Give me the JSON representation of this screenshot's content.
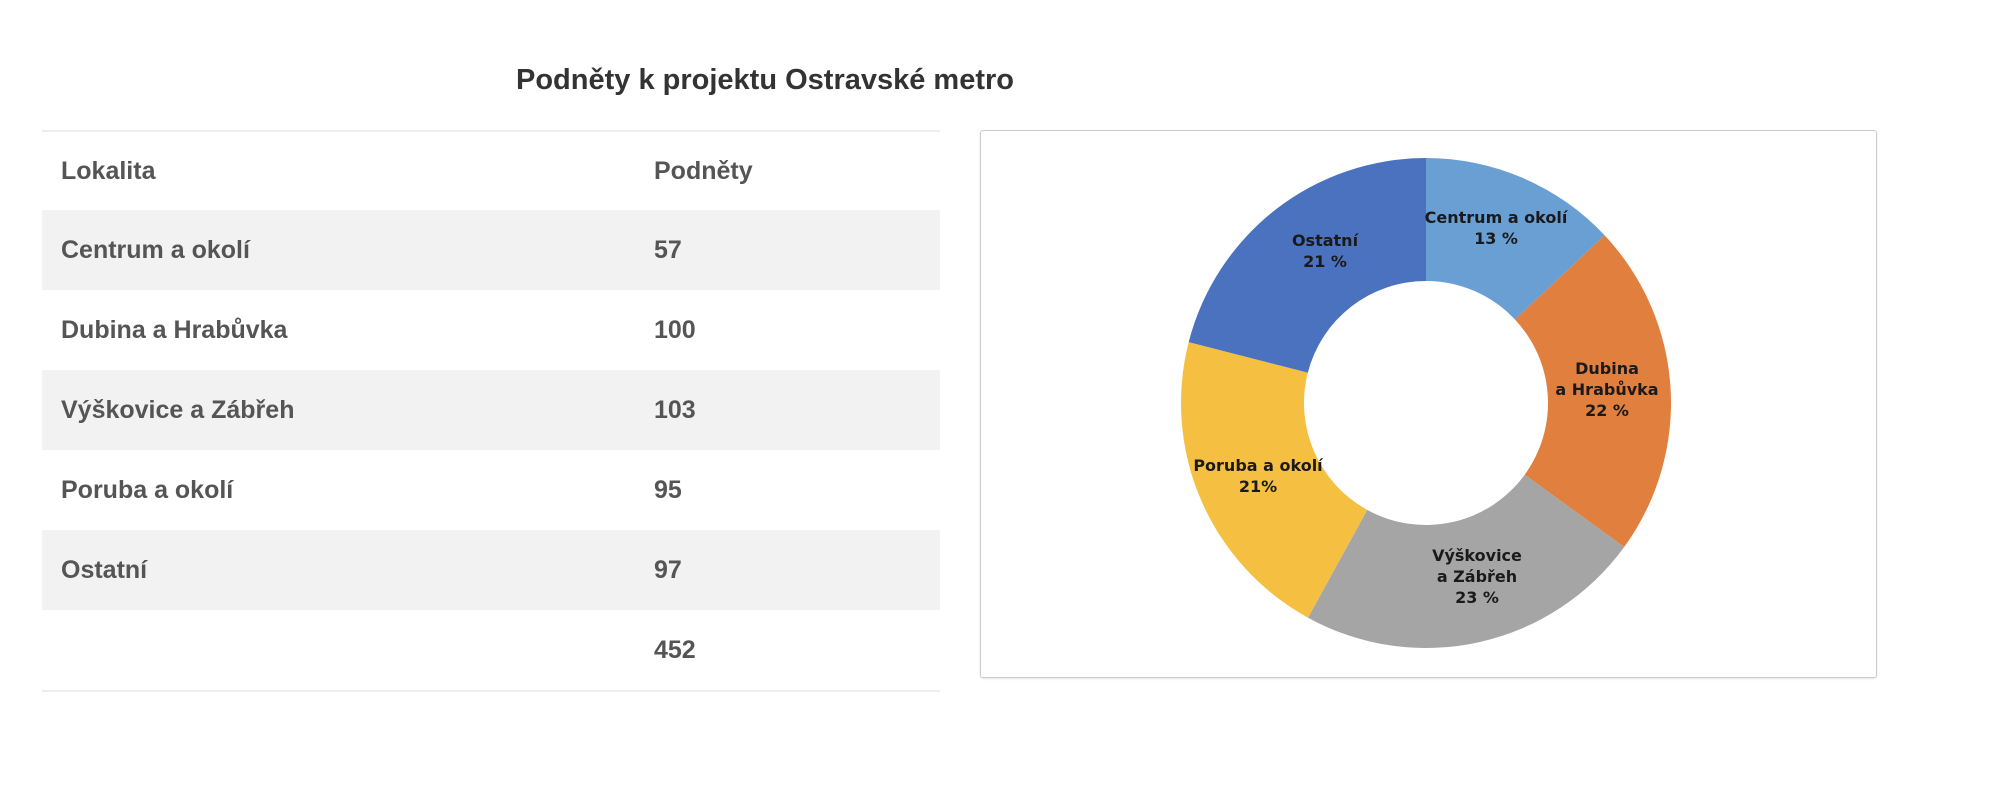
{
  "title": "Podněty k projektu Ostravské metro",
  "table": {
    "headers": [
      "Lokalita",
      "Podněty"
    ],
    "rows": [
      {
        "lokalita": "Centrum a okolí",
        "podnety": "57"
      },
      {
        "lokalita": "Dubina a Hrabůvka",
        "podnety": "100"
      },
      {
        "lokalita": "Výškovice a Zábřeh",
        "podnety": "103"
      },
      {
        "lokalita": "Poruba a okolí",
        "podnety": "95"
      },
      {
        "lokalita": "Ostatní",
        "podnety": "97"
      }
    ],
    "total": "452"
  },
  "chart_data": {
    "type": "pie",
    "donut": true,
    "slices": [
      {
        "label_lines": [
          "Centrum a okolí",
          "13 %"
        ],
        "value": 13,
        "color": "#6a9fd4"
      },
      {
        "label_lines": [
          "Dubina",
          "a Hrabůvka",
          "22 %"
        ],
        "value": 22,
        "color": "#e07f3e"
      },
      {
        "label_lines": [
          "Výškovice",
          "a Zábřeh",
          "23 %"
        ],
        "value": 23,
        "color": "#a5a5a5"
      },
      {
        "label_lines": [
          "Poruba a okolí",
          "21%"
        ],
        "value": 21,
        "color": "#f5c042"
      },
      {
        "label_lines": [
          "Ostatní",
          "21 %"
        ],
        "value": 21,
        "color": "#4b72be"
      }
    ]
  }
}
